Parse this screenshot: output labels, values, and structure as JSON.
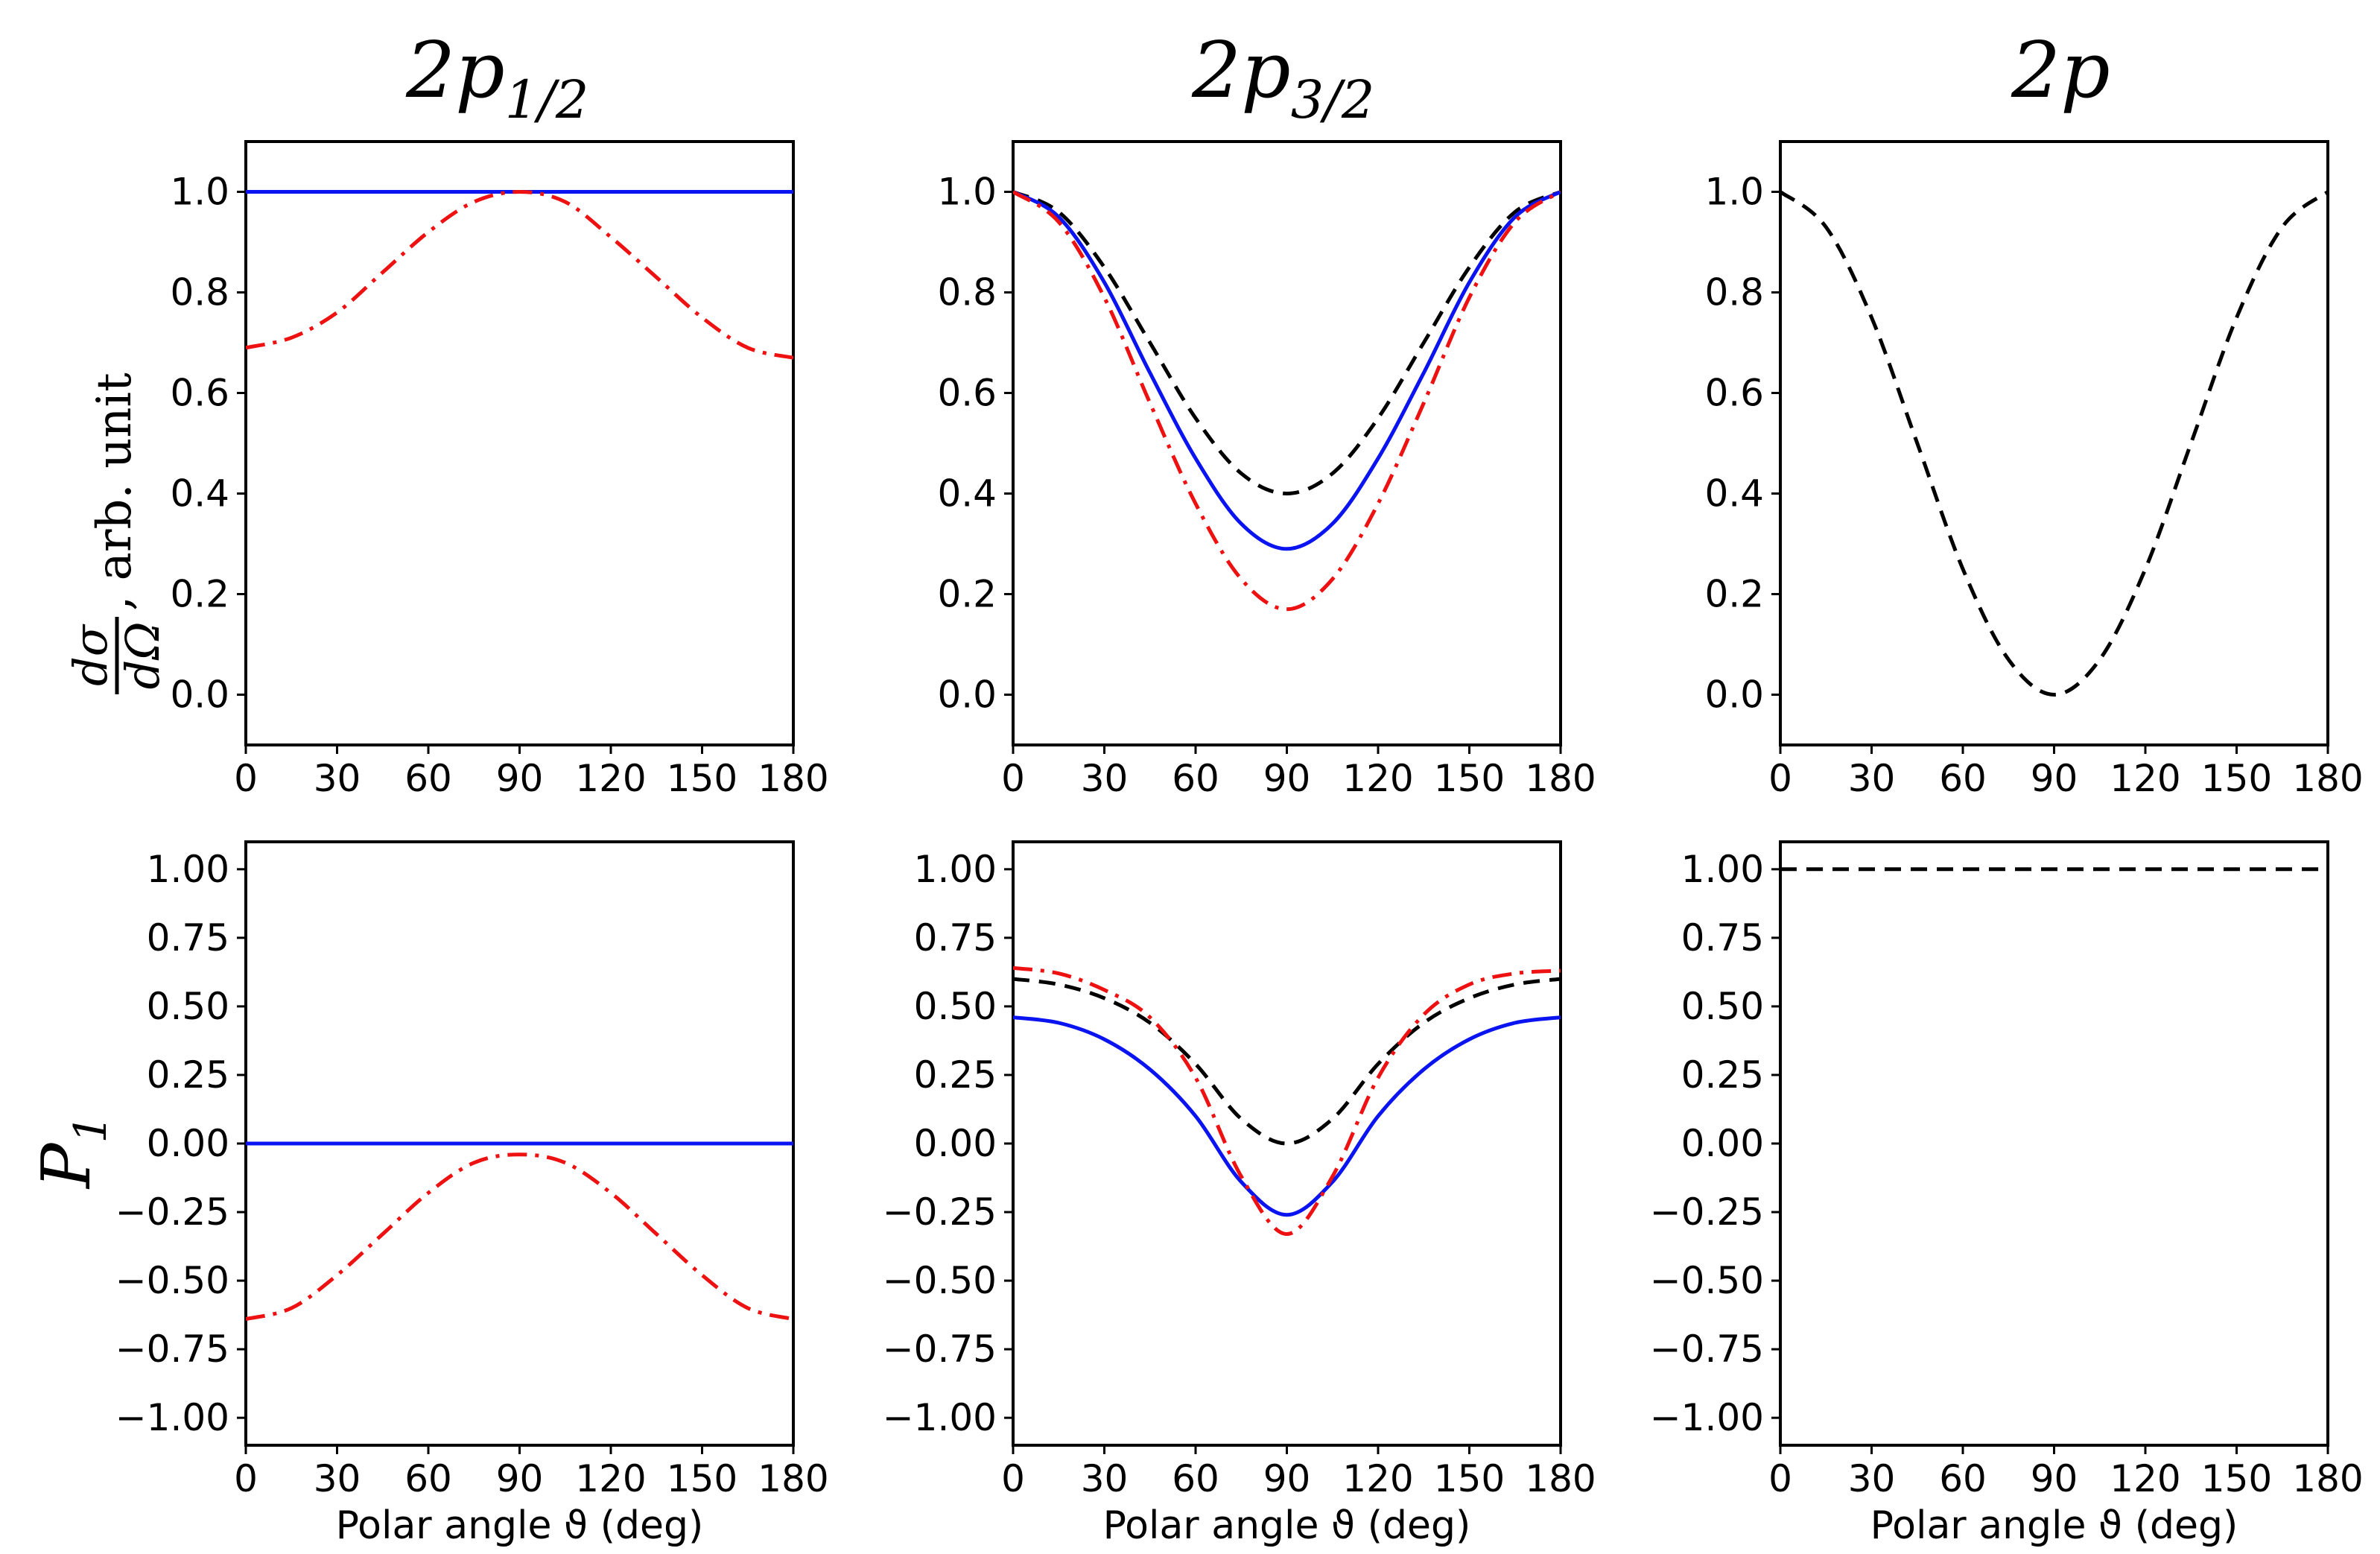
{
  "colors": {
    "blue": "#0a14f0",
    "red": "#ee1111",
    "black": "#000000"
  },
  "column_titles": [
    {
      "main": "2p",
      "sub": "1/2"
    },
    {
      "main": "2p",
      "sub": "3/2"
    },
    {
      "main": "2p",
      "sub": ""
    }
  ],
  "row_labels": {
    "top": {
      "num": "dσ",
      "den": "dΩ",
      "suffix": ", arb. unit"
    },
    "bottom": {
      "main": "P",
      "sub": "1"
    }
  },
  "chart_data": [
    {
      "type": "line",
      "row": 0,
      "col": 0,
      "title": "2p1/2",
      "xlabel": "",
      "ylabel": "dσ/dΩ, arb. unit",
      "xlim": [
        0,
        180
      ],
      "ylim": [
        -0.1,
        1.1
      ],
      "xticks": [
        0,
        30,
        60,
        90,
        120,
        150,
        180
      ],
      "xtick_labels": [
        "0",
        "30",
        "60",
        "90",
        "120",
        "150",
        "180"
      ],
      "yticks": [
        0.0,
        0.2,
        0.4,
        0.6,
        0.8,
        1.0
      ],
      "ytick_labels": [
        "0.0",
        "0.2",
        "0.4",
        "0.6",
        "0.8",
        "1.0"
      ],
      "x": [
        0,
        15,
        30,
        45,
        60,
        75,
        90,
        105,
        120,
        135,
        150,
        165,
        180
      ],
      "series": [
        {
          "name": "solid",
          "color": "blue",
          "style": "solid",
          "values": [
            1,
            1,
            1,
            1,
            1,
            1,
            1,
            1,
            1,
            1,
            1,
            1,
            1
          ]
        },
        {
          "name": "dash-dot",
          "color": "red",
          "style": "dashdot",
          "values": [
            0.69,
            0.71,
            0.76,
            0.84,
            0.92,
            0.98,
            1.0,
            0.98,
            0.91,
            0.83,
            0.75,
            0.69,
            0.67
          ]
        }
      ]
    },
    {
      "type": "line",
      "row": 0,
      "col": 1,
      "title": "2p3/2",
      "xlabel": "",
      "ylabel": "",
      "xlim": [
        0,
        180
      ],
      "ylim": [
        -0.1,
        1.1
      ],
      "xticks": [
        0,
        30,
        60,
        90,
        120,
        150,
        180
      ],
      "xtick_labels": [
        "0",
        "30",
        "60",
        "90",
        "120",
        "150",
        "180"
      ],
      "yticks": [
        0.0,
        0.2,
        0.4,
        0.6,
        0.8,
        1.0
      ],
      "ytick_labels": [
        "0.0",
        "0.2",
        "0.4",
        "0.6",
        "0.8",
        "1.0"
      ],
      "x": [
        0,
        15,
        30,
        45,
        60,
        75,
        90,
        105,
        120,
        135,
        150,
        165,
        180
      ],
      "series": [
        {
          "name": "dashed",
          "color": "black",
          "style": "dashed",
          "values": [
            1.0,
            0.96,
            0.85,
            0.7,
            0.55,
            0.44,
            0.4,
            0.44,
            0.55,
            0.7,
            0.85,
            0.96,
            1.0
          ]
        },
        {
          "name": "solid",
          "color": "blue",
          "style": "solid",
          "values": [
            1.0,
            0.95,
            0.82,
            0.64,
            0.47,
            0.34,
            0.29,
            0.34,
            0.47,
            0.64,
            0.82,
            0.95,
            1.0
          ]
        },
        {
          "name": "dash-dot",
          "color": "red",
          "style": "dashdot",
          "values": [
            1.0,
            0.94,
            0.79,
            0.58,
            0.38,
            0.23,
            0.17,
            0.23,
            0.38,
            0.58,
            0.79,
            0.94,
            1.0
          ]
        }
      ]
    },
    {
      "type": "line",
      "row": 0,
      "col": 2,
      "title": "2p",
      "xlabel": "",
      "ylabel": "",
      "xlim": [
        0,
        180
      ],
      "ylim": [
        -0.1,
        1.1
      ],
      "xticks": [
        0,
        30,
        60,
        90,
        120,
        150,
        180
      ],
      "xtick_labels": [
        "0",
        "30",
        "60",
        "90",
        "120",
        "150",
        "180"
      ],
      "yticks": [
        0.0,
        0.2,
        0.4,
        0.6,
        0.8,
        1.0
      ],
      "ytick_labels": [
        "0.0",
        "0.2",
        "0.4",
        "0.6",
        "0.8",
        "1.0"
      ],
      "x": [
        0,
        15,
        30,
        45,
        60,
        75,
        90,
        105,
        120,
        135,
        150,
        165,
        180
      ],
      "series": [
        {
          "name": "dashed",
          "color": "black",
          "style": "dashed",
          "values": [
            1.0,
            0.93,
            0.75,
            0.5,
            0.25,
            0.07,
            0.0,
            0.07,
            0.25,
            0.5,
            0.75,
            0.93,
            1.0
          ]
        }
      ]
    },
    {
      "type": "line",
      "row": 1,
      "col": 0,
      "title": "",
      "xlabel": "Polar angle ϑ (deg)",
      "ylabel": "P1",
      "xlim": [
        0,
        180
      ],
      "ylim": [
        -1.1,
        1.1
      ],
      "xticks": [
        0,
        30,
        60,
        90,
        120,
        150,
        180
      ],
      "xtick_labels": [
        "0",
        "30",
        "60",
        "90",
        "120",
        "150",
        "180"
      ],
      "yticks": [
        -1.0,
        -0.75,
        -0.5,
        -0.25,
        0.0,
        0.25,
        0.5,
        0.75,
        1.0
      ],
      "ytick_labels": [
        "−1.00",
        "−0.75",
        "−0.50",
        "−0.25",
        "0.00",
        "0.25",
        "0.50",
        "0.75",
        "1.00"
      ],
      "x": [
        0,
        15,
        30,
        45,
        60,
        75,
        90,
        105,
        120,
        135,
        150,
        165,
        180
      ],
      "series": [
        {
          "name": "solid",
          "color": "blue",
          "style": "solid",
          "values": [
            0,
            0,
            0,
            0,
            0,
            0,
            0,
            0,
            0,
            0,
            0,
            0,
            0
          ]
        },
        {
          "name": "dash-dot",
          "color": "red",
          "style": "dashdot",
          "values": [
            -0.64,
            -0.6,
            -0.48,
            -0.33,
            -0.18,
            -0.07,
            -0.04,
            -0.07,
            -0.18,
            -0.33,
            -0.48,
            -0.6,
            -0.64
          ]
        }
      ]
    },
    {
      "type": "line",
      "row": 1,
      "col": 1,
      "title": "",
      "xlabel": "Polar angle ϑ (deg)",
      "ylabel": "",
      "xlim": [
        0,
        180
      ],
      "ylim": [
        -1.1,
        1.1
      ],
      "xticks": [
        0,
        30,
        60,
        90,
        120,
        150,
        180
      ],
      "xtick_labels": [
        "0",
        "30",
        "60",
        "90",
        "120",
        "150",
        "180"
      ],
      "yticks": [
        -1.0,
        -0.75,
        -0.5,
        -0.25,
        0.0,
        0.25,
        0.5,
        0.75,
        1.0
      ],
      "ytick_labels": [
        "−1.00",
        "−0.75",
        "−0.50",
        "−0.25",
        "0.00",
        "0.25",
        "0.50",
        "0.75",
        "1.00"
      ],
      "x": [
        0,
        15,
        30,
        45,
        60,
        75,
        90,
        105,
        120,
        135,
        150,
        165,
        180
      ],
      "series": [
        {
          "name": "dashed",
          "color": "black",
          "style": "dashed",
          "values": [
            0.6,
            0.58,
            0.53,
            0.44,
            0.29,
            0.09,
            0.0,
            0.09,
            0.29,
            0.44,
            0.53,
            0.58,
            0.6
          ]
        },
        {
          "name": "solid",
          "color": "blue",
          "style": "solid",
          "values": [
            0.46,
            0.44,
            0.38,
            0.27,
            0.1,
            -0.14,
            -0.26,
            -0.14,
            0.1,
            0.27,
            0.38,
            0.44,
            0.46
          ]
        },
        {
          "name": "dash-dot",
          "color": "red",
          "style": "dashdot",
          "values": [
            0.64,
            0.62,
            0.56,
            0.46,
            0.24,
            -0.12,
            -0.33,
            -0.12,
            0.24,
            0.47,
            0.58,
            0.62,
            0.63
          ]
        }
      ]
    },
    {
      "type": "line",
      "row": 1,
      "col": 2,
      "title": "",
      "xlabel": "Polar angle ϑ (deg)",
      "ylabel": "",
      "xlim": [
        0,
        180
      ],
      "ylim": [
        -1.1,
        1.1
      ],
      "xticks": [
        0,
        30,
        60,
        90,
        120,
        150,
        180
      ],
      "xtick_labels": [
        "0",
        "30",
        "60",
        "90",
        "120",
        "150",
        "180"
      ],
      "yticks": [
        -1.0,
        -0.75,
        -0.5,
        -0.25,
        0.0,
        0.25,
        0.5,
        0.75,
        1.0
      ],
      "ytick_labels": [
        "−1.00",
        "−0.75",
        "−0.50",
        "−0.25",
        "0.00",
        "0.25",
        "0.50",
        "0.75",
        "1.00"
      ],
      "x": [
        0,
        15,
        30,
        45,
        60,
        75,
        90,
        105,
        120,
        135,
        150,
        165,
        180
      ],
      "series": [
        {
          "name": "dashed",
          "color": "black",
          "style": "dashed",
          "values": [
            1,
            1,
            1,
            1,
            1,
            1,
            1,
            1,
            1,
            1,
            1,
            1,
            1
          ]
        }
      ]
    }
  ]
}
